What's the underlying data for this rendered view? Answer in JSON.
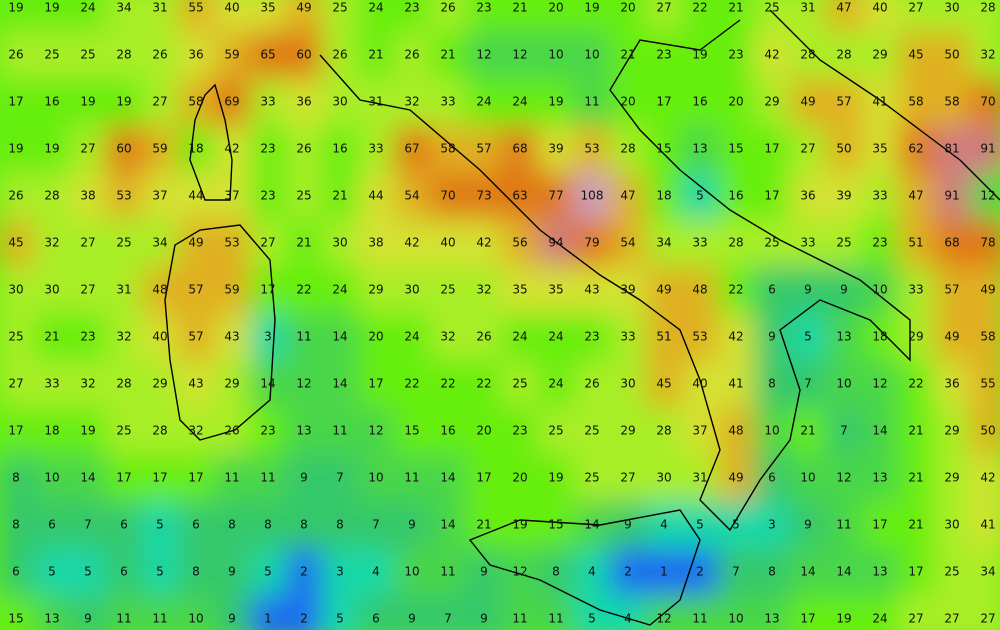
{
  "grid": [
    [
      19,
      19,
      24,
      34,
      31,
      55,
      40,
      35,
      49,
      25,
      24,
      23,
      26,
      23,
      21,
      20,
      19,
      20,
      27,
      22,
      21,
      25,
      31,
      47,
      40,
      27,
      30,
      28
    ],
    [
      26,
      25,
      25,
      28,
      26,
      36,
      59,
      65,
      60,
      26,
      21,
      26,
      21,
      12,
      12,
      10,
      10,
      21,
      23,
      19,
      23,
      42,
      28,
      28,
      29,
      45,
      50,
      32
    ],
    [
      17,
      16,
      19,
      19,
      27,
      58,
      69,
      33,
      36,
      30,
      31,
      32,
      33,
      24,
      24,
      19,
      11,
      20,
      17,
      16,
      20,
      29,
      49,
      57,
      41,
      58,
      58,
      70
    ],
    [
      19,
      19,
      27,
      60,
      59,
      18,
      42,
      23,
      26,
      16,
      33,
      67,
      58,
      57,
      68,
      39,
      53,
      28,
      15,
      13,
      15,
      17,
      27,
      50,
      35,
      62,
      81,
      91
    ],
    [
      26,
      28,
      38,
      53,
      37,
      44,
      37,
      23,
      25,
      21,
      44,
      54,
      70,
      73,
      63,
      77,
      108,
      47,
      18,
      5,
      16,
      17,
      36,
      39,
      33,
      47,
      91,
      12
    ],
    [
      45,
      32,
      27,
      25,
      34,
      49,
      53,
      27,
      21,
      30,
      38,
      42,
      40,
      42,
      56,
      94,
      79,
      54,
      34,
      33,
      28,
      25,
      33,
      25,
      23,
      51,
      68,
      78
    ],
    [
      30,
      30,
      27,
      31,
      48,
      57,
      59,
      17,
      22,
      24,
      29,
      30,
      25,
      32,
      35,
      35,
      43,
      39,
      49,
      48,
      22,
      6,
      9,
      9,
      10,
      33,
      57,
      49
    ],
    [
      25,
      21,
      23,
      32,
      40,
      57,
      43,
      3,
      11,
      14,
      20,
      24,
      32,
      26,
      24,
      24,
      23,
      33,
      51,
      53,
      42,
      9,
      5,
      13,
      18,
      29,
      49,
      58
    ],
    [
      27,
      33,
      32,
      28,
      29,
      43,
      29,
      14,
      12,
      14,
      17,
      22,
      22,
      22,
      25,
      24,
      26,
      30,
      45,
      40,
      41,
      8,
      7,
      10,
      12,
      22,
      36,
      55
    ],
    [
      17,
      18,
      19,
      25,
      28,
      32,
      26,
      23,
      13,
      11,
      12,
      15,
      16,
      20,
      23,
      25,
      25,
      29,
      28,
      37,
      48,
      10,
      21,
      7,
      14,
      21,
      29,
      50
    ],
    [
      8,
      10,
      14,
      17,
      17,
      17,
      11,
      11,
      9,
      7,
      10,
      11,
      14,
      17,
      20,
      19,
      25,
      27,
      30,
      31,
      49,
      6,
      10,
      12,
      13,
      21,
      29,
      42
    ],
    [
      8,
      6,
      7,
      6,
      5,
      6,
      8,
      8,
      8,
      8,
      7,
      9,
      14,
      21,
      19,
      15,
      14,
      9,
      4,
      5,
      5,
      3,
      9,
      11,
      17,
      21,
      30,
      41
    ],
    [
      6,
      5,
      5,
      6,
      5,
      8,
      9,
      5,
      2,
      3,
      4,
      10,
      11,
      9,
      12,
      8,
      4,
      2,
      1,
      2,
      7,
      8,
      14,
      14,
      13,
      17,
      25,
      34
    ],
    [
      15,
      13,
      9,
      11,
      11,
      10,
      9,
      1,
      2,
      5,
      6,
      9,
      7,
      9,
      11,
      11,
      5,
      4,
      12,
      11,
      10,
      13,
      17,
      19,
      24,
      27,
      27,
      27
    ]
  ]
}
